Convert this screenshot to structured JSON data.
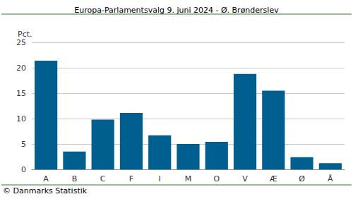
{
  "chart_data": {
    "type": "bar",
    "title": "Europa-Parlamentsvalg 9. juni 2024 - Ø. Brønderslev",
    "y_label": "Pct.",
    "source": "© Danmarks Statistik",
    "categories": [
      "A",
      "B",
      "C",
      "F",
      "I",
      "M",
      "O",
      "V",
      "Æ",
      "Ø",
      "Å"
    ],
    "values": [
      21.4,
      3.5,
      9.8,
      11.1,
      6.7,
      5.0,
      5.4,
      18.8,
      15.5,
      2.4,
      1.2
    ],
    "color": "#005f8e",
    "ylim": [
      0,
      25
    ],
    "yticks": [
      0,
      5,
      10,
      15,
      20,
      25
    ],
    "grid": true
  }
}
